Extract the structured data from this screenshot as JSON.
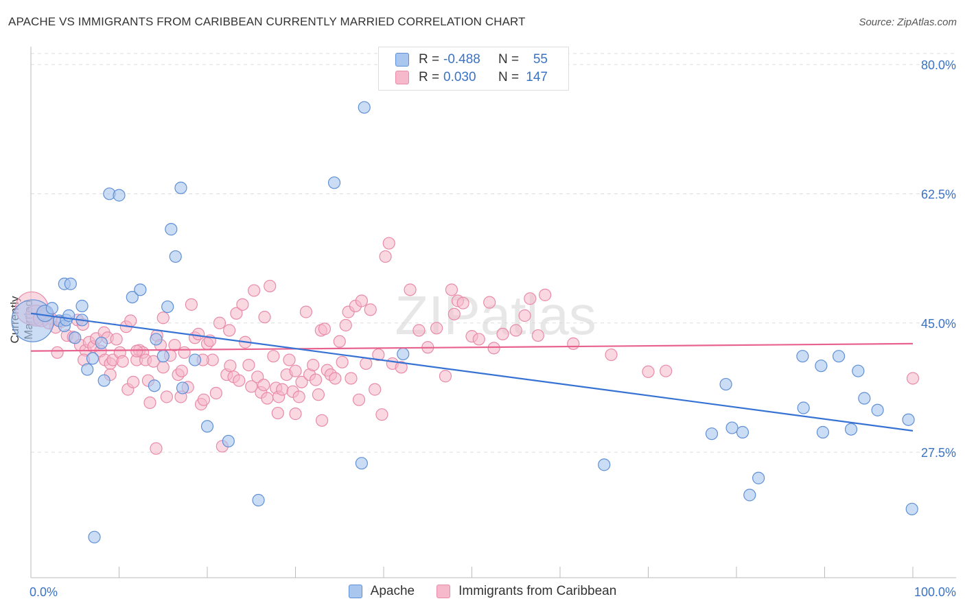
{
  "header": {
    "title": "APACHE VS IMMIGRANTS FROM CARIBBEAN CURRENTLY MARRIED CORRELATION CHART",
    "source": "Source: ZipAtlas.com"
  },
  "watermark": "ZIPatlas",
  "legend": {
    "rows": [
      {
        "r_label": "R =",
        "r_value": "-0.488",
        "n_label": "N =",
        "n_value": "55"
      },
      {
        "r_label": "R =",
        "r_value": "0.030",
        "n_label": "N =",
        "n_value": "147"
      }
    ]
  },
  "colors": {
    "apache_fill": "#a9c6ef",
    "apache_stroke": "#5e8fd6",
    "apache_line": "#3572d4",
    "carib_fill": "#f6b8cb",
    "carib_stroke": "#e88aa8",
    "carib_line": "#e8628e",
    "axis_text": "#3a72c4",
    "grid": "#dddddd"
  },
  "chart_data": {
    "type": "scatter",
    "title": "APACHE VS IMMIGRANTS FROM CARIBBEAN CURRENTLY MARRIED CORRELATION CHART",
    "ylabel": "Currently Married",
    "xlabel": "",
    "x_tick_labels": [
      "0.0%",
      "100.0%"
    ],
    "y_tick_labels": [
      "80.0%",
      "62.5%",
      "45.0%",
      "27.5%"
    ],
    "y_ticks": [
      80.0,
      62.5,
      45.0,
      27.5
    ],
    "xlim": [
      0,
      100
    ],
    "ylim": [
      10.5,
      81.5
    ],
    "grid": true,
    "legend_position": "top-center",
    "series": [
      {
        "name": "Apache",
        "trend": {
          "x": [
            0,
            100
          ],
          "y": [
            46.3,
            30.4
          ]
        },
        "points": [
          [
            0.2,
            45.3,
            36
          ],
          [
            1.6,
            46.3,
            14
          ],
          [
            2.4,
            47.0,
            10
          ],
          [
            3.2,
            45.3,
            10
          ],
          [
            3.8,
            44.6,
            10
          ],
          [
            4.0,
            45.4,
            10
          ],
          [
            3.8,
            50.3,
            10
          ],
          [
            4.5,
            50.3,
            10
          ],
          [
            5.8,
            45.4,
            10
          ],
          [
            5.8,
            47.3,
            10
          ],
          [
            5.0,
            43.0,
            10
          ],
          [
            6.4,
            38.7,
            10
          ],
          [
            7.0,
            40.2,
            10
          ],
          [
            8.0,
            42.3,
            10
          ],
          [
            8.3,
            37.2,
            10
          ],
          [
            8.9,
            62.5,
            10
          ],
          [
            10.0,
            62.3,
            10
          ],
          [
            11.5,
            48.5,
            10
          ],
          [
            12.4,
            49.5,
            10
          ],
          [
            14.0,
            36.5,
            10
          ],
          [
            14.2,
            42.8,
            10
          ],
          [
            15.0,
            40.5,
            10
          ],
          [
            15.5,
            47.2,
            10
          ],
          [
            15.9,
            57.7,
            10
          ],
          [
            16.4,
            54.0,
            10
          ],
          [
            17.0,
            63.3,
            10
          ],
          [
            17.2,
            36.2,
            10
          ],
          [
            18.6,
            40.0,
            10
          ],
          [
            20.0,
            31.0,
            10
          ],
          [
            22.4,
            29.0,
            10
          ],
          [
            25.8,
            21.0,
            10
          ],
          [
            37.5,
            26.0,
            10
          ],
          [
            34.4,
            64.0,
            10
          ],
          [
            37.8,
            74.2,
            10
          ],
          [
            7.2,
            16.0,
            10
          ],
          [
            42.2,
            40.8,
            10
          ],
          [
            65.0,
            25.8,
            10
          ],
          [
            78.8,
            36.7,
            10
          ],
          [
            77.2,
            30.0,
            10
          ],
          [
            79.5,
            30.8,
            10
          ],
          [
            80.7,
            30.2,
            10
          ],
          [
            82.5,
            24.0,
            10
          ],
          [
            81.5,
            21.7,
            10
          ],
          [
            87.5,
            40.5,
            10
          ],
          [
            87.6,
            33.5,
            10
          ],
          [
            89.8,
            30.2,
            10
          ],
          [
            89.6,
            39.2,
            10
          ],
          [
            91.6,
            40.5,
            10
          ],
          [
            93.0,
            30.6,
            10
          ],
          [
            93.8,
            38.5,
            10
          ],
          [
            94.5,
            34.8,
            10
          ],
          [
            96.0,
            33.2,
            10
          ],
          [
            99.5,
            31.9,
            10
          ],
          [
            99.9,
            19.8,
            10
          ],
          [
            4.3,
            46.0,
            10
          ]
        ]
      },
      {
        "name": "Immigrants from Caribbean",
        "trend": {
          "x": [
            0,
            100
          ],
          "y": [
            41.2,
            42.2
          ]
        },
        "points": [
          [
            0.1,
            47.0,
            28
          ],
          [
            0.6,
            46.0,
            18
          ],
          [
            1.2,
            45.6,
            14
          ],
          [
            1.8,
            46.2,
            12
          ],
          [
            2.3,
            45.6,
            10
          ],
          [
            2.8,
            44.4,
            10
          ],
          [
            3.0,
            41.0,
            10
          ],
          [
            3.5,
            45.2,
            10
          ],
          [
            4.1,
            43.3,
            10
          ],
          [
            4.8,
            43.1,
            10
          ],
          [
            5.3,
            45.4,
            10
          ],
          [
            5.9,
            44.8,
            10
          ],
          [
            5.6,
            42.0,
            10
          ],
          [
            6.2,
            41.3,
            10
          ],
          [
            6.6,
            42.4,
            10
          ],
          [
            7.1,
            41.8,
            10
          ],
          [
            7.4,
            42.9,
            10
          ],
          [
            7.9,
            41.2,
            10
          ],
          [
            8.3,
            43.7,
            10
          ],
          [
            8.7,
            43.0,
            10
          ],
          [
            8.4,
            40.0,
            10
          ],
          [
            9.0,
            39.5,
            10
          ],
          [
            9.3,
            40.0,
            10
          ],
          [
            9.7,
            42.8,
            10
          ],
          [
            10.1,
            41.0,
            10
          ],
          [
            10.4,
            39.8,
            10
          ],
          [
            10.8,
            44.5,
            10
          ],
          [
            11.0,
            36.0,
            10
          ],
          [
            11.3,
            45.3,
            10
          ],
          [
            11.6,
            37.0,
            10
          ],
          [
            12.0,
            40.0,
            10
          ],
          [
            12.3,
            41.3,
            10
          ],
          [
            12.7,
            41.0,
            10
          ],
          [
            13.0,
            40.0,
            10
          ],
          [
            13.3,
            37.2,
            10
          ],
          [
            13.5,
            34.2,
            10
          ],
          [
            13.9,
            39.8,
            10
          ],
          [
            14.3,
            43.3,
            10
          ],
          [
            14.7,
            42.0,
            10
          ],
          [
            14.2,
            28.0,
            10
          ],
          [
            15.0,
            39.0,
            10
          ],
          [
            15.4,
            35.0,
            10
          ],
          [
            15.8,
            40.6,
            10
          ],
          [
            16.3,
            42.0,
            10
          ],
          [
            16.7,
            38.0,
            10
          ],
          [
            17.1,
            38.5,
            10
          ],
          [
            17.4,
            41.0,
            10
          ],
          [
            17.8,
            36.3,
            10
          ],
          [
            18.2,
            47.5,
            10
          ],
          [
            18.6,
            43.0,
            10
          ],
          [
            19.0,
            43.5,
            10
          ],
          [
            19.3,
            34.0,
            10
          ],
          [
            19.6,
            34.6,
            10
          ],
          [
            20.0,
            42.2,
            10
          ],
          [
            20.3,
            42.6,
            10
          ],
          [
            20.6,
            40.0,
            10
          ],
          [
            21.0,
            35.5,
            10
          ],
          [
            21.4,
            45.0,
            10
          ],
          [
            21.7,
            28.3,
            10
          ],
          [
            22.2,
            38.0,
            10
          ],
          [
            22.6,
            39.2,
            10
          ],
          [
            23.0,
            37.7,
            10
          ],
          [
            23.3,
            46.3,
            10
          ],
          [
            23.6,
            37.2,
            10
          ],
          [
            24.0,
            47.5,
            10
          ],
          [
            24.3,
            42.4,
            10
          ],
          [
            24.7,
            39.3,
            10
          ],
          [
            25.0,
            36.4,
            10
          ],
          [
            25.3,
            49.4,
            10
          ],
          [
            25.7,
            37.7,
            10
          ],
          [
            26.1,
            35.6,
            10
          ],
          [
            26.4,
            36.6,
            10
          ],
          [
            26.8,
            34.8,
            10
          ],
          [
            27.1,
            50.0,
            10
          ],
          [
            27.5,
            40.5,
            10
          ],
          [
            27.8,
            36.2,
            10
          ],
          [
            28.1,
            35.0,
            10
          ],
          [
            28.5,
            36.0,
            10
          ],
          [
            28.0,
            32.8,
            10
          ],
          [
            29.0,
            38.0,
            10
          ],
          [
            29.3,
            40.0,
            10
          ],
          [
            29.7,
            35.7,
            10
          ],
          [
            30.0,
            38.5,
            10
          ],
          [
            30.4,
            35.0,
            10
          ],
          [
            30.7,
            37.0,
            10
          ],
          [
            31.2,
            46.5,
            10
          ],
          [
            31.6,
            38.0,
            10
          ],
          [
            32.0,
            39.3,
            10
          ],
          [
            32.3,
            37.3,
            10
          ],
          [
            32.6,
            35.3,
            10
          ],
          [
            32.9,
            44.0,
            10
          ],
          [
            33.3,
            44.2,
            10
          ],
          [
            33.6,
            38.6,
            10
          ],
          [
            34.0,
            38.0,
            10
          ],
          [
            34.5,
            37.5,
            10
          ],
          [
            35.0,
            42.5,
            10
          ],
          [
            35.3,
            39.7,
            10
          ],
          [
            35.7,
            44.7,
            10
          ],
          [
            36.0,
            46.5,
            10
          ],
          [
            36.3,
            37.5,
            10
          ],
          [
            36.8,
            47.3,
            10
          ],
          [
            37.2,
            34.6,
            10
          ],
          [
            37.5,
            48.0,
            10
          ],
          [
            38.0,
            39.5,
            10
          ],
          [
            38.5,
            46.8,
            10
          ],
          [
            39.0,
            36.0,
            10
          ],
          [
            39.4,
            40.7,
            10
          ],
          [
            39.8,
            32.6,
            10
          ],
          [
            40.2,
            54.0,
            10
          ],
          [
            40.6,
            55.8,
            10
          ],
          [
            41.0,
            39.5,
            10
          ],
          [
            42.0,
            39.0,
            10
          ],
          [
            43.0,
            49.5,
            10
          ],
          [
            44.0,
            44.0,
            10
          ],
          [
            45.0,
            41.7,
            10
          ],
          [
            46.0,
            44.3,
            10
          ],
          [
            47.0,
            37.8,
            10
          ],
          [
            47.7,
            49.5,
            10
          ],
          [
            48.0,
            46.2,
            10
          ],
          [
            48.4,
            48.0,
            10
          ],
          [
            49.0,
            47.7,
            10
          ],
          [
            50.0,
            43.2,
            10
          ],
          [
            50.8,
            42.8,
            10
          ],
          [
            52.0,
            47.8,
            10
          ],
          [
            52.5,
            41.6,
            10
          ],
          [
            53.5,
            43.5,
            10
          ],
          [
            55.0,
            44.0,
            10
          ],
          [
            56.0,
            46.0,
            10
          ],
          [
            56.6,
            48.3,
            10
          ],
          [
            57.5,
            43.3,
            10
          ],
          [
            58.3,
            48.8,
            10
          ],
          [
            61.5,
            42.2,
            10
          ],
          [
            65.8,
            40.7,
            10
          ],
          [
            70.0,
            38.4,
            10
          ],
          [
            72.0,
            38.5,
            10
          ],
          [
            100.0,
            37.5,
            10
          ],
          [
            2.0,
            45.0,
            10
          ],
          [
            6.0,
            40.0,
            10
          ],
          [
            9.0,
            38.0,
            10
          ],
          [
            12.0,
            41.2,
            10
          ],
          [
            15.0,
            45.7,
            10
          ],
          [
            17.0,
            35.0,
            10
          ],
          [
            19.5,
            40.0,
            10
          ],
          [
            22.5,
            44.0,
            10
          ],
          [
            26.5,
            45.8,
            10
          ],
          [
            30.0,
            32.7,
            10
          ],
          [
            33.0,
            31.8,
            10
          ]
        ]
      }
    ]
  }
}
